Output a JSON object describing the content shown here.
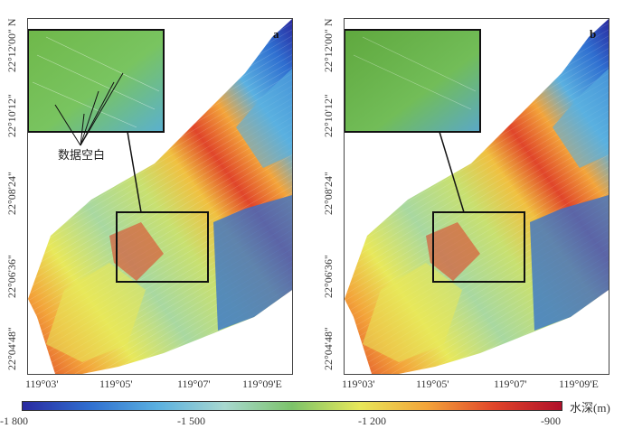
{
  "panels": [
    {
      "letter": "a",
      "annotation": "数据空白"
    },
    {
      "letter": "b"
    }
  ],
  "axes": {
    "x_ticks": [
      "119°03'",
      "119°05'",
      "119°07'",
      "119°09'E"
    ],
    "y_ticks": [
      "22°04'48\"",
      "22°06'36\"",
      "22°08'24\"",
      "22°10'12\"",
      "22°12'00\" N"
    ]
  },
  "colorbar": {
    "title": "水深(m)",
    "ticks": [
      "-1 800",
      "-1 500",
      "-1 200",
      "-900"
    ],
    "stops": [
      "#2a2aa0",
      "#2f6fd0",
      "#5ab0e0",
      "#a8d8d0",
      "#7cc36a",
      "#e8e85a",
      "#f3a43a",
      "#e0452a",
      "#b0102a"
    ]
  }
}
